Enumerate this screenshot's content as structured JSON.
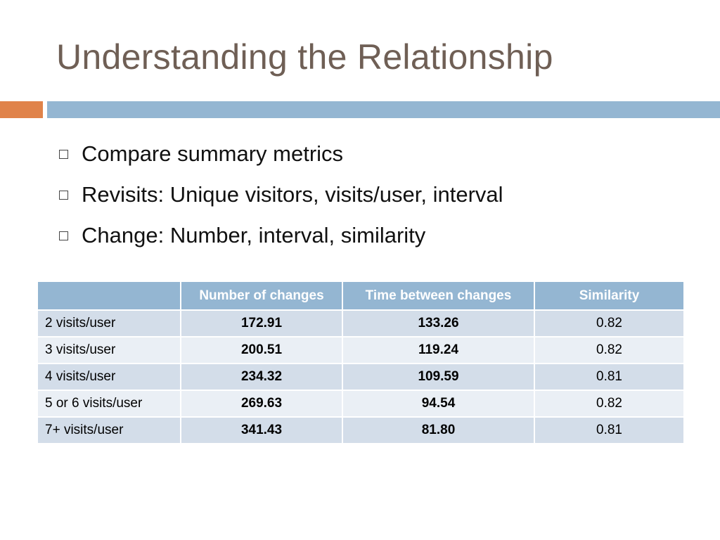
{
  "slide": {
    "title": "Understanding the Relationship"
  },
  "colors": {
    "title_text": "#6f5f55",
    "accent_orange": "#e0834a",
    "accent_blue": "#94b6d2",
    "table_header": "#94b6d2",
    "row_odd": "#d3dde9",
    "row_even": "#eaeff5"
  },
  "bullets": [
    {
      "icon": "square-bullet-icon",
      "text": "Compare summary metrics"
    },
    {
      "icon": "square-bullet-icon",
      "text": "Revisits: Unique visitors, visits/user, interval"
    },
    {
      "icon": "square-bullet-icon",
      "text": "Change: Number, interval, similarity"
    }
  ],
  "table": {
    "headers": [
      "",
      "Number of changes",
      "Time between changes",
      "Similarity"
    ],
    "rows": [
      [
        "2 visits/user",
        "172.91",
        "133.26",
        "0.82"
      ],
      [
        "3 visits/user",
        "200.51",
        "119.24",
        "0.82"
      ],
      [
        "4 visits/user",
        "234.32",
        "109.59",
        "0.81"
      ],
      [
        "5 or 6 visits/user",
        "269.63",
        "94.54",
        "0.82"
      ],
      [
        "7+ visits/user",
        "341.43",
        "81.80",
        "0.81"
      ]
    ]
  }
}
